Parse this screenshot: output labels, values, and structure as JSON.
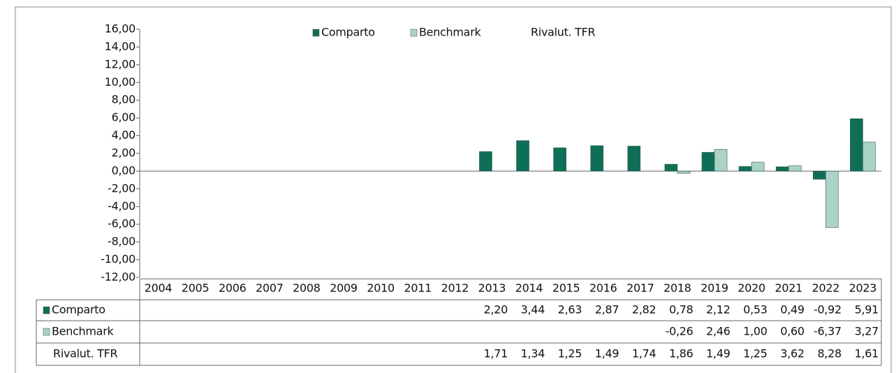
{
  "chart_data": {
    "type": "bar",
    "categories": [
      "2004",
      "2005",
      "2006",
      "2007",
      "2008",
      "2009",
      "2010",
      "2011",
      "2012",
      "2013",
      "2014",
      "2015",
      "2016",
      "2017",
      "2018",
      "2019",
      "2020",
      "2021",
      "2022",
      "2023"
    ],
    "series": [
      {
        "name": "Comparto",
        "color": "#0f6e57",
        "values": [
          null,
          null,
          null,
          null,
          null,
          null,
          null,
          null,
          null,
          2.2,
          3.44,
          2.63,
          2.87,
          2.82,
          0.78,
          2.12,
          0.53,
          0.49,
          -0.92,
          5.91
        ],
        "value_labels": [
          null,
          null,
          null,
          null,
          null,
          null,
          null,
          null,
          null,
          "2,20",
          "3,44",
          "2,63",
          "2,87",
          "2,82",
          "0,78",
          "2,12",
          "0,53",
          "0,49",
          "-0,92",
          "5,91"
        ]
      },
      {
        "name": "Benchmark",
        "color": "#a9d3c7",
        "values": [
          null,
          null,
          null,
          null,
          null,
          null,
          null,
          null,
          null,
          null,
          null,
          null,
          null,
          null,
          -0.26,
          2.46,
          1.0,
          0.6,
          -6.37,
          3.27
        ],
        "value_labels": [
          null,
          null,
          null,
          null,
          null,
          null,
          null,
          null,
          null,
          null,
          null,
          null,
          null,
          null,
          "-0,26",
          "2,46",
          "1,00",
          "0,60",
          "-6,37",
          "3,27"
        ]
      },
      {
        "name": "Rivalut. TFR",
        "values": [
          null,
          null,
          null,
          null,
          null,
          null,
          null,
          null,
          null,
          1.71,
          1.34,
          1.25,
          1.49,
          1.74,
          1.86,
          1.49,
          1.25,
          3.62,
          8.28,
          1.61
        ],
        "value_labels": [
          null,
          null,
          null,
          null,
          null,
          null,
          null,
          null,
          null,
          "1,71",
          "1,34",
          "1,25",
          "1,49",
          "1,74",
          "1,86",
          "1,49",
          "1,25",
          "3,62",
          "8,28",
          "1,61"
        ]
      }
    ],
    "ylim": [
      -12,
      16
    ],
    "yticks": [
      {
        "value": 16,
        "label": "16,00"
      },
      {
        "value": 14,
        "label": "14,00"
      },
      {
        "value": 12,
        "label": "12,00"
      },
      {
        "value": 10,
        "label": "10,00"
      },
      {
        "value": 8,
        "label": "8,00"
      },
      {
        "value": 6,
        "label": "6,00"
      },
      {
        "value": 4,
        "label": "4,00"
      },
      {
        "value": 2,
        "label": "2,00"
      },
      {
        "value": 0,
        "label": "0,00"
      },
      {
        "value": -2,
        "label": "-2,00"
      },
      {
        "value": -4,
        "label": "-4,00"
      },
      {
        "value": -6,
        "label": "-6,00"
      },
      {
        "value": -8,
        "label": "-8,00"
      },
      {
        "value": -10,
        "label": "-10,00"
      },
      {
        "value": -12,
        "label": "-12,00"
      }
    ],
    "legend": "top"
  }
}
